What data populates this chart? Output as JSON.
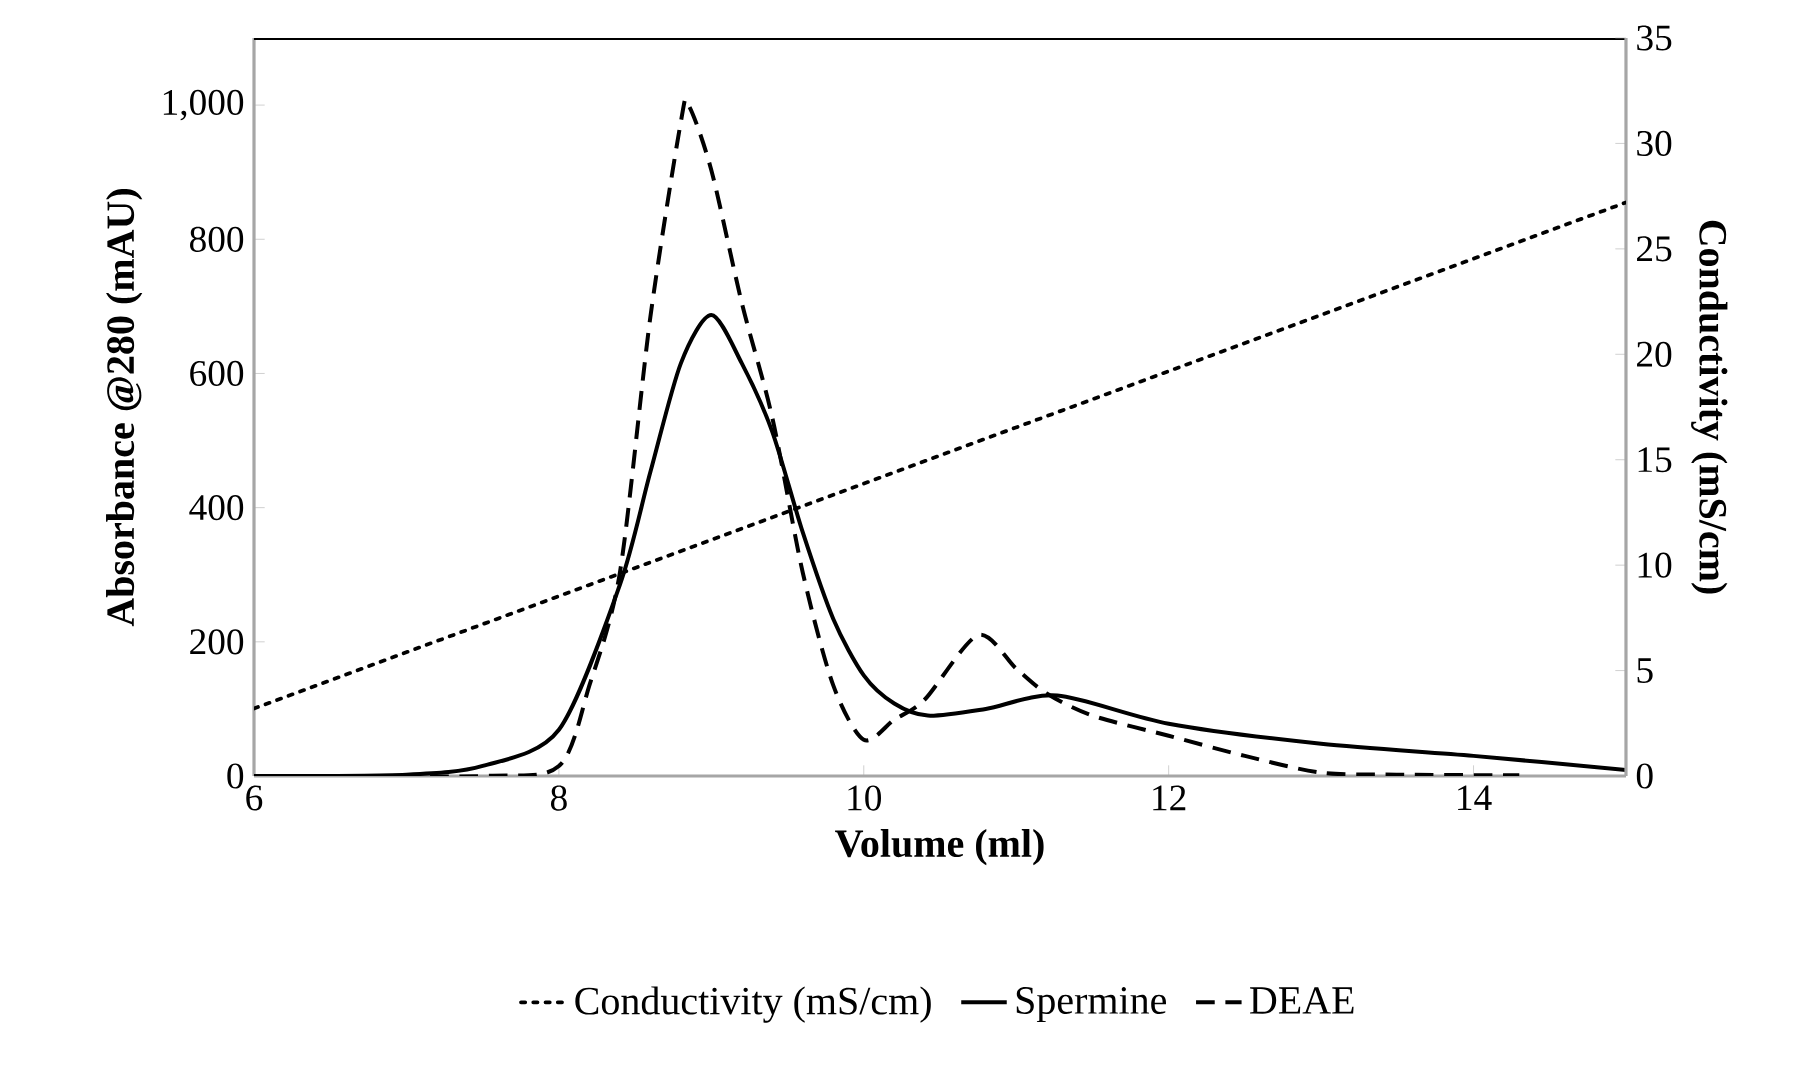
{
  "chart_data": {
    "type": "line",
    "xlabel": "Volume (ml)",
    "ylabel": "Absorbance @280 (mAU)",
    "y2label": "Conductivity (mS/cm)",
    "xlim": [
      6,
      15
    ],
    "xticks": [
      6,
      8,
      10,
      12,
      14
    ],
    "ylim": [
      0,
      1100
    ],
    "yticks": [
      0,
      200,
      400,
      600,
      800,
      {
        "value": 1000,
        "label": "1,000"
      }
    ],
    "y2lim": [
      0,
      35
    ],
    "y2ticks": [
      0,
      5,
      10,
      15,
      20,
      25,
      30,
      35
    ],
    "legend": "bottom",
    "marker": "none",
    "series": [
      {
        "name": "Spermine",
        "color": "#000000",
        "line_style": "solid",
        "x": [
          6,
          7,
          7.5,
          8,
          8.4,
          8.6,
          8.8,
          9,
          9.2,
          9.4,
          9.6,
          9.8,
          10,
          10.2,
          10.42,
          10.8,
          11.27,
          12,
          13,
          14,
          15
        ],
        "values": [
          0,
          2,
          15,
          69,
          285,
          453,
          615,
          687,
          615,
          513,
          363,
          234,
          150,
          108,
          90,
          100,
          120,
          78,
          48,
          30,
          9
        ]
      },
      {
        "name": "DEAE",
        "color": "#000000",
        "line_style": "dashed",
        "x": [
          6,
          7.5,
          8,
          8.2,
          8.4,
          8.6,
          8.8,
          8.85,
          9,
          9.2,
          9.4,
          9.6,
          9.8,
          10,
          10.2,
          10.4,
          10.75,
          11,
          11.2,
          11.5,
          12,
          12.5,
          13,
          13.5,
          14.3
        ],
        "values": [
          0,
          0,
          15,
          135,
          303,
          684,
          975,
          1000,
          903,
          705,
          534,
          303,
          135,
          54,
          84,
          114,
          210,
          160,
          123,
          90,
          60,
          30,
          5,
          2,
          1
        ]
      },
      {
        "name": "Conductivity (mS/cm)",
        "color": "#000000",
        "line_style": "dotted",
        "axis": "y2",
        "x": [
          6,
          15
        ],
        "values": [
          3.2,
          27.2
        ]
      }
    ]
  }
}
